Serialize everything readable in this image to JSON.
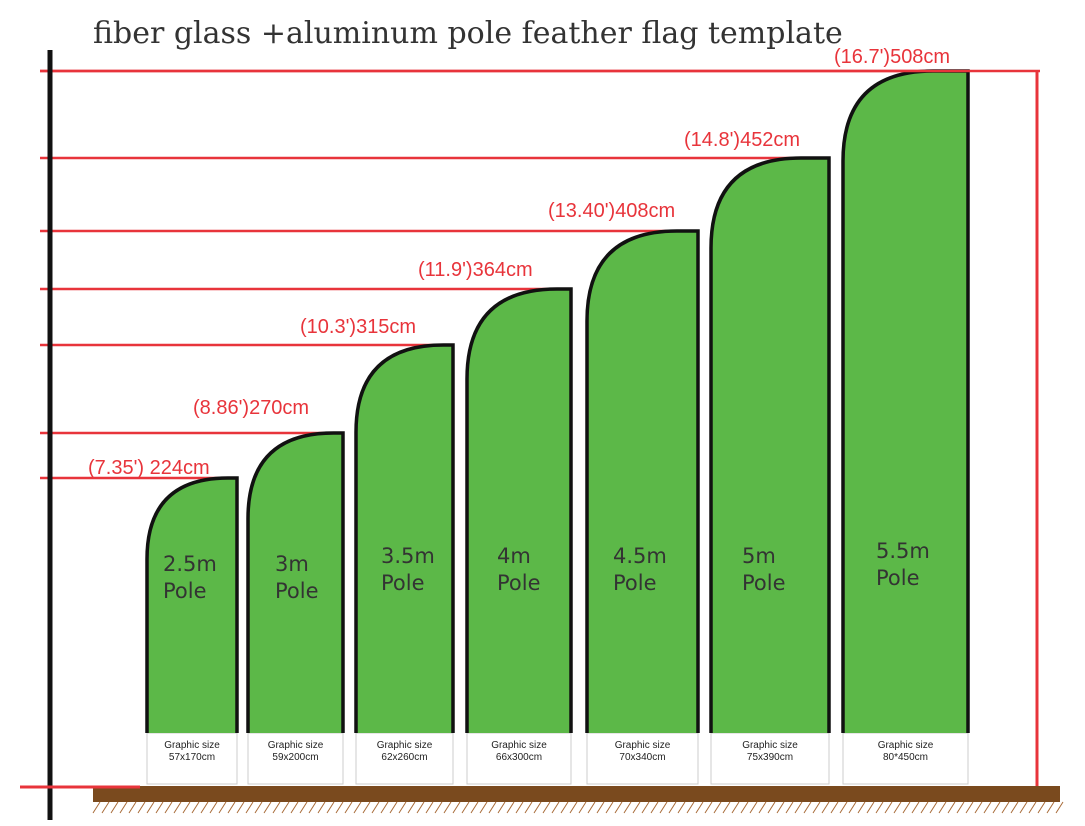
{
  "title": "fiber glass +aluminum pole feather flag template",
  "colors": {
    "flag_fill": "#5cb848",
    "flag_outline": "#111111",
    "guide_line": "#e8343b",
    "ground": "#7a4a1e",
    "pole": "#111111"
  },
  "flags": [
    {
      "height_label": "(7.35')  224cm",
      "pole_size": "2.5m",
      "pole_word": "Pole",
      "graphic_caption": "Graphic size",
      "graphic_size": "57x170cm",
      "height_cm": 224
    },
    {
      "height_label": "(8.86')270cm",
      "pole_size": "3m",
      "pole_word": "Pole",
      "graphic_caption": "Graphic size",
      "graphic_size": "59x200cm",
      "height_cm": 270
    },
    {
      "height_label": "(10.3')315cm",
      "pole_size": "3.5m",
      "pole_word": "Pole",
      "graphic_caption": "Graphic size",
      "graphic_size": "62x260cm",
      "height_cm": 315
    },
    {
      "height_label": "(11.9')364cm",
      "pole_size": "4m",
      "pole_word": "Pole",
      "graphic_caption": "Graphic size",
      "graphic_size": "66x300cm",
      "height_cm": 364
    },
    {
      "height_label": "(13.40')408cm",
      "pole_size": "4.5m",
      "pole_word": "Pole",
      "graphic_caption": "Graphic size",
      "graphic_size": "70x340cm",
      "height_cm": 408
    },
    {
      "height_label": "(14.8')452cm",
      "pole_size": "5m",
      "pole_word": "Pole",
      "graphic_caption": "Graphic size",
      "graphic_size": "75x390cm",
      "height_cm": 452
    },
    {
      "height_label": "(16.7')508cm",
      "pole_size": "5.5m",
      "pole_word": "Pole",
      "graphic_caption": "Graphic size",
      "graphic_size": "80*450cm",
      "height_cm": 508
    }
  ]
}
